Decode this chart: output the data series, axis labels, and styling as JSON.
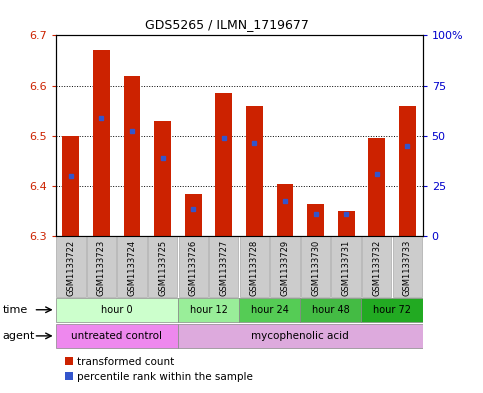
{
  "title": "GDS5265 / ILMN_1719677",
  "samples": [
    "GSM1133722",
    "GSM1133723",
    "GSM1133724",
    "GSM1133725",
    "GSM1133726",
    "GSM1133727",
    "GSM1133728",
    "GSM1133729",
    "GSM1133730",
    "GSM1133731",
    "GSM1133732",
    "GSM1133733"
  ],
  "bar_bottoms": [
    6.3,
    6.3,
    6.3,
    6.3,
    6.3,
    6.3,
    6.3,
    6.3,
    6.3,
    6.3,
    6.3,
    6.3
  ],
  "bar_tops": [
    6.5,
    6.67,
    6.62,
    6.53,
    6.385,
    6.585,
    6.56,
    6.405,
    6.365,
    6.35,
    6.495,
    6.56
  ],
  "blue_markers": [
    6.42,
    6.535,
    6.51,
    6.455,
    6.355,
    6.495,
    6.485,
    6.37,
    6.345,
    6.345,
    6.425,
    6.48
  ],
  "ylim": [
    6.3,
    6.7
  ],
  "yticks_left": [
    6.3,
    6.4,
    6.5,
    6.6,
    6.7
  ],
  "yticks_right": [
    0,
    25,
    50,
    75,
    100
  ],
  "ytick_right_labels": [
    "0",
    "25",
    "50",
    "75",
    "100%"
  ],
  "bar_color": "#cc2200",
  "blue_color": "#3355cc",
  "time_groups": [
    {
      "label": "hour 0",
      "start": 0,
      "end": 4,
      "color": "#ccffcc"
    },
    {
      "label": "hour 12",
      "start": 4,
      "end": 6,
      "color": "#99ee99"
    },
    {
      "label": "hour 24",
      "start": 6,
      "end": 8,
      "color": "#55cc55"
    },
    {
      "label": "hour 48",
      "start": 8,
      "end": 10,
      "color": "#44bb44"
    },
    {
      "label": "hour 72",
      "start": 10,
      "end": 12,
      "color": "#22aa22"
    }
  ],
  "agent_groups": [
    {
      "label": "untreated control",
      "start": 0,
      "end": 4,
      "color": "#ee88ee"
    },
    {
      "label": "mycophenolic acid",
      "start": 4,
      "end": 12,
      "color": "#ddaadd"
    }
  ],
  "ytick_left_color": "#cc2200",
  "ytick_right_color": "#0000cc",
  "legend_red_label": "transformed count",
  "legend_blue_label": "percentile rank within the sample",
  "sample_box_color": "#cccccc",
  "sample_box_edge": "#aaaaaa"
}
